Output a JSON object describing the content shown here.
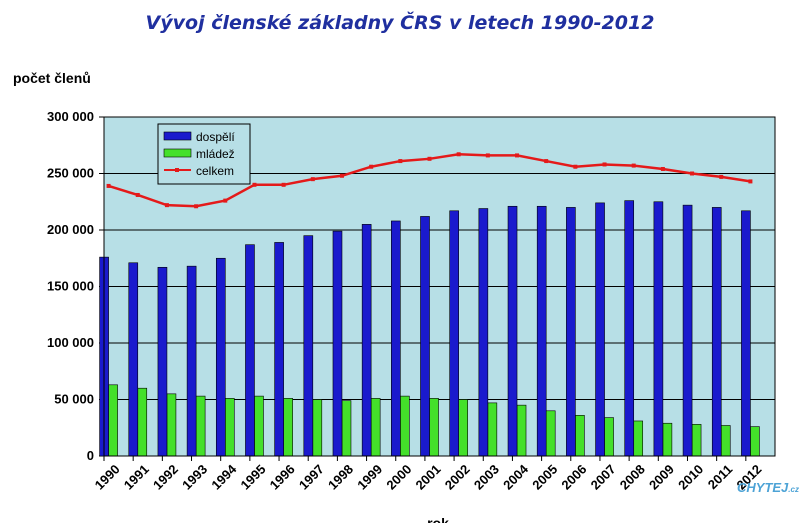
{
  "chart_data": {
    "type": "bar",
    "title": "Vývoj členské základny ČRS v letech 1990-2012",
    "ylabel": "počet členů",
    "xlabel": "rok",
    "ylim": [
      0,
      300000
    ],
    "yticks": [
      "0",
      "50 000",
      "100 000",
      "150 000",
      "200 000",
      "250 000",
      "300 000"
    ],
    "categories": [
      "1990",
      "1991",
      "1992",
      "1993",
      "1994",
      "1995",
      "1996",
      "1997",
      "1998",
      "1999",
      "2000",
      "2001",
      "2002",
      "2003",
      "2004",
      "2005",
      "2006",
      "2007",
      "2008",
      "2009",
      "2010",
      "2011",
      "2012"
    ],
    "series": [
      {
        "name": "dospělí",
        "type": "bar",
        "color": "#1a1acd",
        "values": [
          176000,
          171000,
          167000,
          168000,
          175000,
          187000,
          189000,
          195000,
          199000,
          205000,
          208000,
          212000,
          217000,
          219000,
          221000,
          221000,
          220000,
          224000,
          226000,
          225000,
          222000,
          220000,
          217000
        ]
      },
      {
        "name": "mládež",
        "type": "bar",
        "color": "#44e02a",
        "values": [
          63000,
          60000,
          55000,
          53000,
          51000,
          53000,
          51000,
          50000,
          49000,
          51000,
          53000,
          51000,
          50000,
          47000,
          45000,
          40000,
          36000,
          34000,
          31000,
          29000,
          28000,
          27000,
          26000
        ]
      },
      {
        "name": "celkem",
        "type": "line",
        "color": "#e41a1a",
        "values": [
          239000,
          231000,
          222000,
          221000,
          226000,
          240000,
          240000,
          245000,
          248000,
          256000,
          261000,
          263000,
          267000,
          266000,
          266000,
          261000,
          256000,
          258000,
          257000,
          254000,
          250000,
          247000,
          243000
        ]
      }
    ],
    "grid": true,
    "legend": "top-left",
    "plot_background": "#b7dfe6"
  },
  "watermark": {
    "text": "CHYTEJ",
    "suffix": ".cz"
  }
}
